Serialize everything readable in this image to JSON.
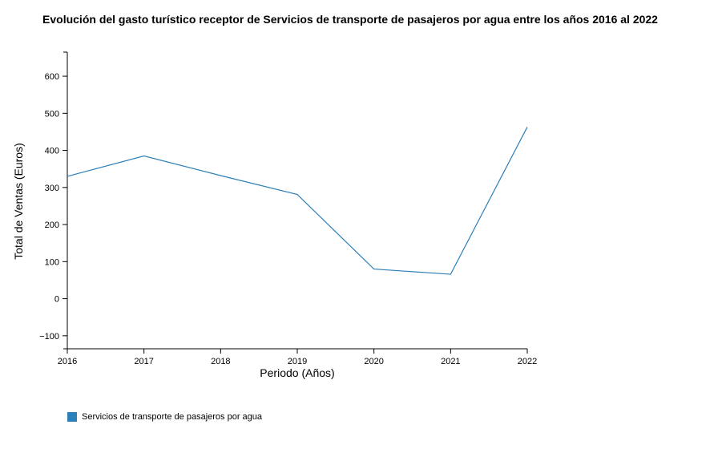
{
  "colors": {
    "series": "#2c7fb8",
    "axis": "#000000"
  },
  "chart_data": {
    "type": "line",
    "title": "Evolución del gasto turístico receptor de Servicios de transporte de pasajeros por agua entre los años 2016 al 2022",
    "xlabel": "Periodo (Años)",
    "ylabel": "Total de Ventas (Euros)",
    "x": [
      "2016",
      "2017",
      "2018",
      "2019",
      "2020",
      "2021",
      "2022"
    ],
    "ylim": [
      -135,
      665
    ],
    "yticks": [
      -100,
      0,
      100,
      200,
      300,
      400,
      500,
      600
    ],
    "ytick_labels": [
      "−100",
      "0",
      "100",
      "200",
      "300",
      "400",
      "500",
      "600"
    ],
    "grid": false,
    "legend_position": "bottom-left",
    "series": [
      {
        "name": "Servicios de transporte de pasajeros por agua",
        "values": [
          330,
          385,
          332,
          281,
          80,
          66,
          463
        ]
      }
    ]
  }
}
